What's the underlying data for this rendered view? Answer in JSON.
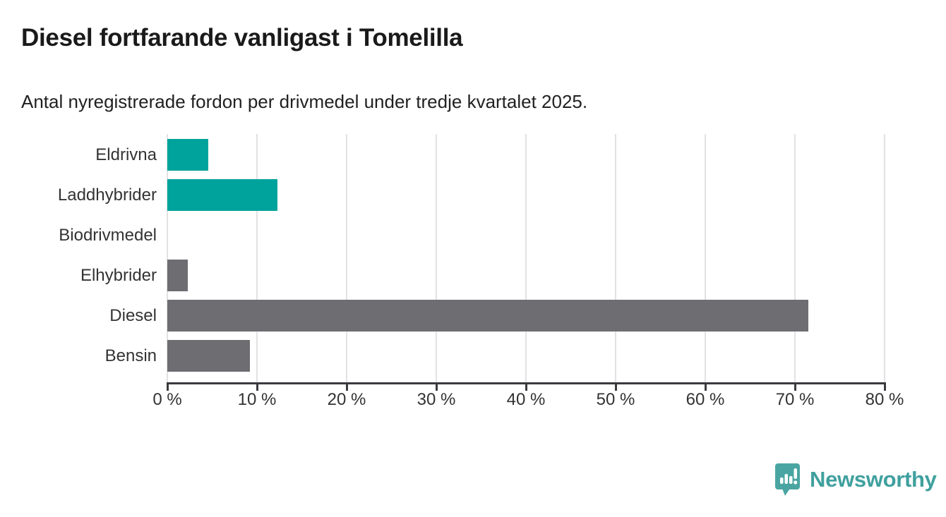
{
  "header": {
    "title": "Diesel fortfarande vanligast i Tomelilla",
    "subtitle": "Antal nyregistrerade fordon per drivmedel under tredje kvartalet 2025."
  },
  "chart_data": {
    "type": "bar",
    "orientation": "horizontal",
    "title": "Diesel fortfarande vanligast i Tomelilla",
    "subtitle": "Antal nyregistrerade fordon per drivmedel under tredje kvartalet 2025.",
    "categories": [
      "Eldrivna",
      "Laddhybrider",
      "Biodrivmedel",
      "Elhybrider",
      "Diesel",
      "Bensin"
    ],
    "values": [
      4.6,
      12.3,
      0,
      2.3,
      71.5,
      9.2
    ],
    "unit": "%",
    "bar_colors": [
      "#00a39b",
      "#00a39b",
      "#6e6d72",
      "#6e6d72",
      "#6e6d72",
      "#6e6d72"
    ],
    "xlabel": "",
    "ylabel": "",
    "xlim": [
      0,
      80
    ],
    "tick_values": [
      0,
      10,
      20,
      30,
      40,
      50,
      60,
      70,
      80
    ],
    "tick_labels": [
      "0 %",
      "10 %",
      "20 %",
      "30 %",
      "40 %",
      "50 %",
      "60 %",
      "70 %",
      "80 %"
    ],
    "grid": true,
    "legend": false,
    "accent_color": "#00a39b",
    "neutral_color": "#6e6d72",
    "gridline_color": "#e2e2e5",
    "axis_color": "#3b3b3f"
  },
  "footer": {
    "brand": "Newsworthy",
    "logo_color": "#4aa5a2",
    "logo_text_color": "#3fa09e"
  }
}
